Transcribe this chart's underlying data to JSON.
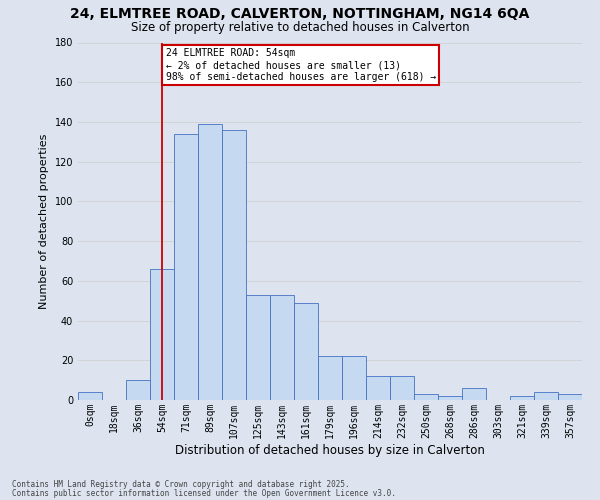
{
  "title_line1": "24, ELMTREE ROAD, CALVERTON, NOTTINGHAM, NG14 6QA",
  "title_line2": "Size of property relative to detached houses in Calverton",
  "xlabel": "Distribution of detached houses by size in Calverton",
  "ylabel": "Number of detached properties",
  "footer_line1": "Contains HM Land Registry data © Crown copyright and database right 2025.",
  "footer_line2": "Contains public sector information licensed under the Open Government Licence v3.0.",
  "bin_labels": [
    "0sqm",
    "18sqm",
    "36sqm",
    "54sqm",
    "71sqm",
    "89sqm",
    "107sqm",
    "125sqm",
    "143sqm",
    "161sqm",
    "179sqm",
    "196sqm",
    "214sqm",
    "232sqm",
    "250sqm",
    "268sqm",
    "286sqm",
    "303sqm",
    "321sqm",
    "339sqm",
    "357sqm"
  ],
  "bar_values": [
    4,
    0,
    10,
    66,
    134,
    139,
    136,
    53,
    53,
    49,
    22,
    22,
    12,
    12,
    3,
    2,
    6,
    0,
    2,
    4,
    3
  ],
  "bar_color": "#c5d9f1",
  "bar_edge_color": "#4472c4",
  "grid_color": "#d0d0d0",
  "annotation_text": "24 ELMTREE ROAD: 54sqm\n← 2% of detached houses are smaller (13)\n98% of semi-detached houses are larger (618) →",
  "annotation_box_color": "#ffffff",
  "annotation_box_edge_color": "#cc0000",
  "vline_x": 3,
  "vline_color": "#cc0000",
  "ylim": [
    0,
    180
  ],
  "yticks": [
    0,
    20,
    40,
    60,
    80,
    100,
    120,
    140,
    160,
    180
  ],
  "bg_color": "#dde4f0",
  "title_fontsize": 10,
  "subtitle_fontsize": 8.5,
  "ylabel_fontsize": 8,
  "xlabel_fontsize": 8.5,
  "tick_fontsize": 7,
  "ann_fontsize": 7,
  "footer_fontsize": 5.5
}
